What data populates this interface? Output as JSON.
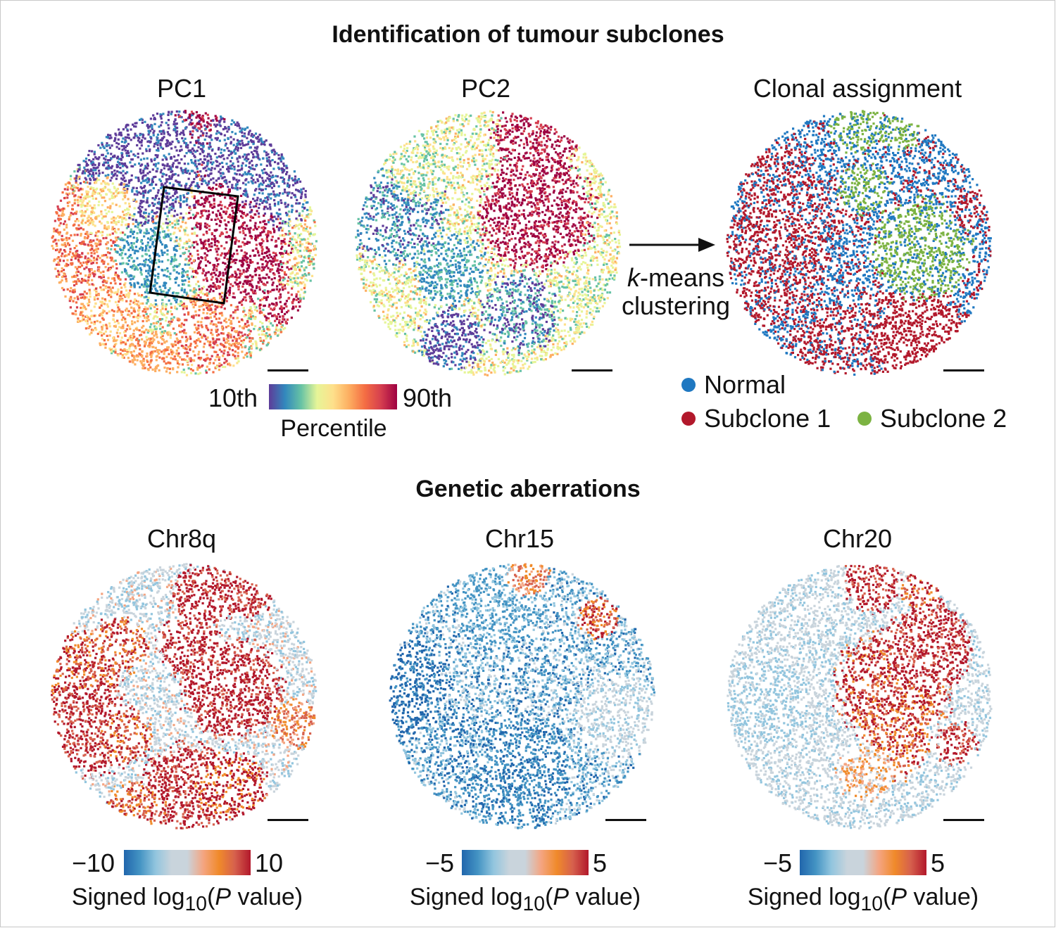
{
  "titles": {
    "top": "Identification of tumour subclones",
    "bottom": "Genetic aberrations"
  },
  "panels": {
    "pc1": "PC1",
    "pc2": "PC2",
    "clonal": "Clonal assignment",
    "chr8q": "Chr8q",
    "chr15": "Chr15",
    "chr20": "Chr20"
  },
  "arrow_label": {
    "line1_italic": "k",
    "line1_rest": "-means",
    "line2": "clustering"
  },
  "percentile_bar": {
    "low": "10th",
    "high": "90th",
    "title": "Percentile"
  },
  "legend": {
    "normal": "Normal",
    "subclone1": "Subclone 1",
    "subclone2": "Subclone 2"
  },
  "pval_bars": [
    {
      "low": "−10",
      "high": "10",
      "title_pre": "Signed log",
      "title_sub": "10",
      "title_open": "(",
      "title_it": "P",
      "title_post": " value)"
    },
    {
      "low": "−5",
      "high": "5",
      "title_pre": "Signed log",
      "title_sub": "10",
      "title_open": "(",
      "title_it": "P",
      "title_post": " value)"
    },
    {
      "low": "−5",
      "high": "5",
      "title_pre": "Signed log",
      "title_sub": "10",
      "title_open": "(",
      "title_it": "P",
      "title_post": " value)"
    }
  ],
  "colors": {
    "normal": "#1f78c1",
    "subclone1": "#b2182b",
    "subclone2": "#7cb342",
    "spectral": [
      "#5e3c99",
      "#3288bd",
      "#66c2a5",
      "#e6f598",
      "#fee08b",
      "#fdae61",
      "#f46d43",
      "#d53e4f",
      "#9e0142"
    ],
    "diverging": [
      "#2166ac",
      "#4393c3",
      "#92c5de",
      "#c9d4dc",
      "#c9d4dc",
      "#f4a582",
      "#f08a2a",
      "#d6604d",
      "#b2182b"
    ]
  },
  "icons": {
    "arrow": "right-arrow-icon"
  }
}
